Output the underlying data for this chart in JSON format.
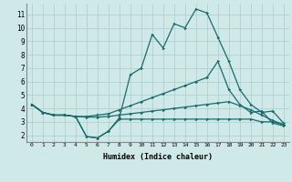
{
  "background_color": "#cfe8e8",
  "grid_color": "#aacccc",
  "line_color": "#1a6b6b",
  "x_label": "Humidex (Indice chaleur)",
  "xlim": [
    -0.5,
    23.5
  ],
  "ylim": [
    1.5,
    11.8
  ],
  "yticks": [
    2,
    3,
    4,
    5,
    6,
    7,
    8,
    9,
    10,
    11
  ],
  "xticks": [
    0,
    1,
    2,
    3,
    4,
    5,
    6,
    7,
    8,
    9,
    10,
    11,
    12,
    13,
    14,
    15,
    16,
    17,
    18,
    19,
    20,
    21,
    22,
    23
  ],
  "line1_main": {
    "x": [
      0,
      1,
      2,
      3,
      4,
      5,
      6,
      7,
      8,
      9,
      10,
      11,
      12,
      13,
      14,
      15,
      16,
      17,
      18,
      19,
      20,
      21,
      22,
      23
    ],
    "y": [
      4.3,
      3.7,
      3.5,
      3.5,
      3.4,
      1.9,
      1.8,
      2.3,
      3.3,
      6.5,
      7.0,
      9.5,
      8.5,
      10.3,
      10.0,
      11.4,
      11.1,
      9.3,
      7.5,
      5.4,
      4.3,
      3.7,
      3.8,
      2.9
    ]
  },
  "line2_linear": {
    "x": [
      0,
      1,
      2,
      3,
      4,
      5,
      6,
      7,
      8,
      9,
      10,
      11,
      12,
      13,
      14,
      15,
      16,
      17,
      18,
      19,
      20,
      21,
      22,
      23
    ],
    "y": [
      4.3,
      3.7,
      3.5,
      3.5,
      3.4,
      3.4,
      3.5,
      3.6,
      3.9,
      4.2,
      4.5,
      4.8,
      5.1,
      5.4,
      5.7,
      6.0,
      6.3,
      7.5,
      5.4,
      4.3,
      3.7,
      3.8,
      2.9,
      2.7
    ]
  },
  "line3_slow": {
    "x": [
      0,
      1,
      2,
      3,
      4,
      5,
      6,
      7,
      8,
      9,
      10,
      11,
      12,
      13,
      14,
      15,
      16,
      17,
      18,
      19,
      20,
      21,
      22,
      23
    ],
    "y": [
      4.3,
      3.7,
      3.5,
      3.5,
      3.4,
      3.35,
      3.35,
      3.4,
      3.5,
      3.6,
      3.7,
      3.8,
      3.9,
      4.0,
      4.1,
      4.2,
      4.3,
      4.4,
      4.5,
      4.2,
      3.9,
      3.5,
      3.1,
      2.8
    ]
  },
  "line4_flat": {
    "x": [
      0,
      1,
      2,
      3,
      4,
      5,
      6,
      7,
      8,
      9,
      10,
      11,
      12,
      13,
      14,
      15,
      16,
      17,
      18,
      19,
      20,
      21,
      22,
      23
    ],
    "y": [
      4.3,
      3.7,
      3.5,
      3.5,
      3.4,
      1.9,
      1.8,
      2.3,
      3.2,
      3.2,
      3.2,
      3.2,
      3.2,
      3.2,
      3.2,
      3.2,
      3.2,
      3.2,
      3.2,
      3.2,
      3.2,
      3.0,
      3.0,
      2.8
    ]
  }
}
